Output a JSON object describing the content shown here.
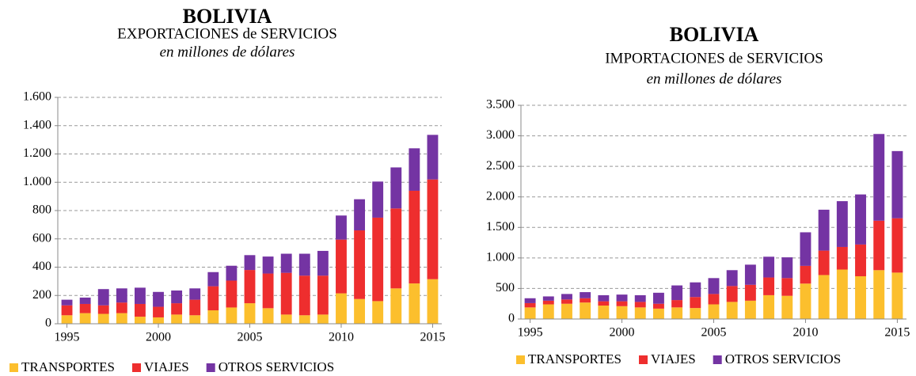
{
  "chart_data": [
    {
      "type": "stacked-bar",
      "title": "BOLIVIA",
      "subtitle": "EXPORTACIONES de SERVICIOS",
      "note": "en millones de dólares",
      "x": [
        1995,
        1996,
        1997,
        1998,
        1999,
        2000,
        2001,
        2002,
        2003,
        2004,
        2005,
        2006,
        2007,
        2008,
        2009,
        2010,
        2011,
        2012,
        2013,
        2014,
        2015
      ],
      "xlim": [
        1994.5,
        2015.5
      ],
      "xticks": [
        1995,
        2000,
        2005,
        2010,
        2015
      ],
      "ylim": [
        0,
        1600
      ],
      "yticks": [
        0,
        200,
        400,
        600,
        800,
        {
          "value": 1000,
          "label": "1.000"
        },
        {
          "value": 1200,
          "label": "1.200"
        },
        {
          "value": 1400,
          "label": "1.400"
        },
        {
          "value": 1600,
          "label": "1.600"
        }
      ],
      "grid": true,
      "series": [
        {
          "name": "TRANSPORTES",
          "color": "#fcbf2d",
          "values": [
            60,
            75,
            70,
            75,
            50,
            45,
            65,
            60,
            95,
            115,
            145,
            110,
            65,
            60,
            65,
            215,
            175,
            160,
            250,
            285,
            315
          ]
        },
        {
          "name": "VIAJES",
          "color": "#ee2e2e",
          "values": [
            70,
            65,
            60,
            75,
            90,
            75,
            80,
            110,
            170,
            190,
            235,
            245,
            295,
            280,
            275,
            380,
            485,
            590,
            565,
            655,
            705
          ]
        },
        {
          "name": "OTROS SERVICIOS",
          "color": "#7434a3",
          "values": [
            40,
            45,
            115,
            100,
            115,
            105,
            90,
            80,
            100,
            105,
            105,
            120,
            135,
            155,
            175,
            170,
            220,
            255,
            290,
            300,
            315
          ]
        }
      ]
    },
    {
      "type": "stacked-bar",
      "title": "BOLIVIA",
      "subtitle": "IMPORTACIONES de SERVICIOS",
      "note": "en millones de dólares",
      "x": [
        1995,
        1996,
        1997,
        1998,
        1999,
        2000,
        2001,
        2002,
        2003,
        2004,
        2005,
        2006,
        2007,
        2008,
        2009,
        2010,
        2011,
        2012,
        2013,
        2014,
        2015
      ],
      "xlim": [
        1994.5,
        2015.5
      ],
      "xticks": [
        1995,
        2000,
        2005,
        2010,
        2015
      ],
      "ylim": [
        0,
        3500
      ],
      "yticks": [
        0,
        500,
        {
          "value": 1000,
          "label": "1.000"
        },
        {
          "value": 1500,
          "label": "1.500"
        },
        {
          "value": 2000,
          "label": "2.000"
        },
        {
          "value": 2500,
          "label": "2.500"
        },
        {
          "value": 3000,
          "label": "3.000"
        },
        {
          "value": 3500,
          "label": "3.500"
        }
      ],
      "grid": true,
      "series": [
        {
          "name": "TRANSPORTES",
          "color": "#fcbf2d",
          "values": [
            190,
            240,
            250,
            270,
            220,
            210,
            190,
            170,
            190,
            180,
            240,
            280,
            300,
            390,
            380,
            580,
            720,
            810,
            700,
            800,
            760
          ]
        },
        {
          "name": "VIAJES",
          "color": "#ee2e2e",
          "values": [
            70,
            60,
            70,
            70,
            70,
            80,
            90,
            80,
            120,
            180,
            170,
            260,
            260,
            290,
            290,
            290,
            400,
            370,
            520,
            810,
            890
          ]
        },
        {
          "name": "OTROS SERVICIOS",
          "color": "#7434a3",
          "values": [
            80,
            70,
            90,
            100,
            100,
            110,
            110,
            180,
            240,
            240,
            260,
            260,
            330,
            340,
            340,
            550,
            670,
            750,
            820,
            1420,
            1100
          ]
        }
      ]
    }
  ]
}
